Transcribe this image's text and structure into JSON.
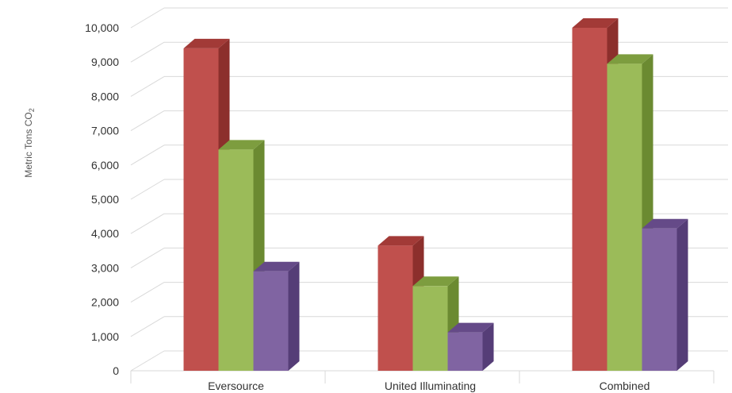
{
  "chart_data": {
    "type": "bar",
    "style": "3d-clustered-column",
    "categories": [
      "Eversource",
      "United Illuminating",
      "Combined"
    ],
    "series": [
      {
        "color": "#c0504d",
        "side_color": "#8c2f2c",
        "top_color": "#a23a37",
        "values": [
          9400,
          3650,
          10000
        ]
      },
      {
        "color": "#9bbb59",
        "side_color": "#6b8a31",
        "top_color": "#7d9d3f",
        "values": [
          6450,
          2470,
          8950
        ]
      },
      {
        "color": "#8064a2",
        "side_color": "#553d77",
        "top_color": "#654a88",
        "values": [
          2900,
          1120,
          4150
        ]
      }
    ],
    "ylabel": "Metric Tons CO",
    "ylabel_subscript": "2",
    "ylim": [
      0,
      10000
    ],
    "yticks": [
      0,
      1000,
      2000,
      3000,
      4000,
      5000,
      6000,
      7000,
      8000,
      9000,
      10000
    ],
    "ytick_labels": [
      "0",
      "1,000",
      "2,000",
      "3,000",
      "4,000",
      "5,000",
      "6,000",
      "7,000",
      "8,000",
      "9,000",
      "10,000"
    ],
    "grid": true,
    "legend": false
  }
}
